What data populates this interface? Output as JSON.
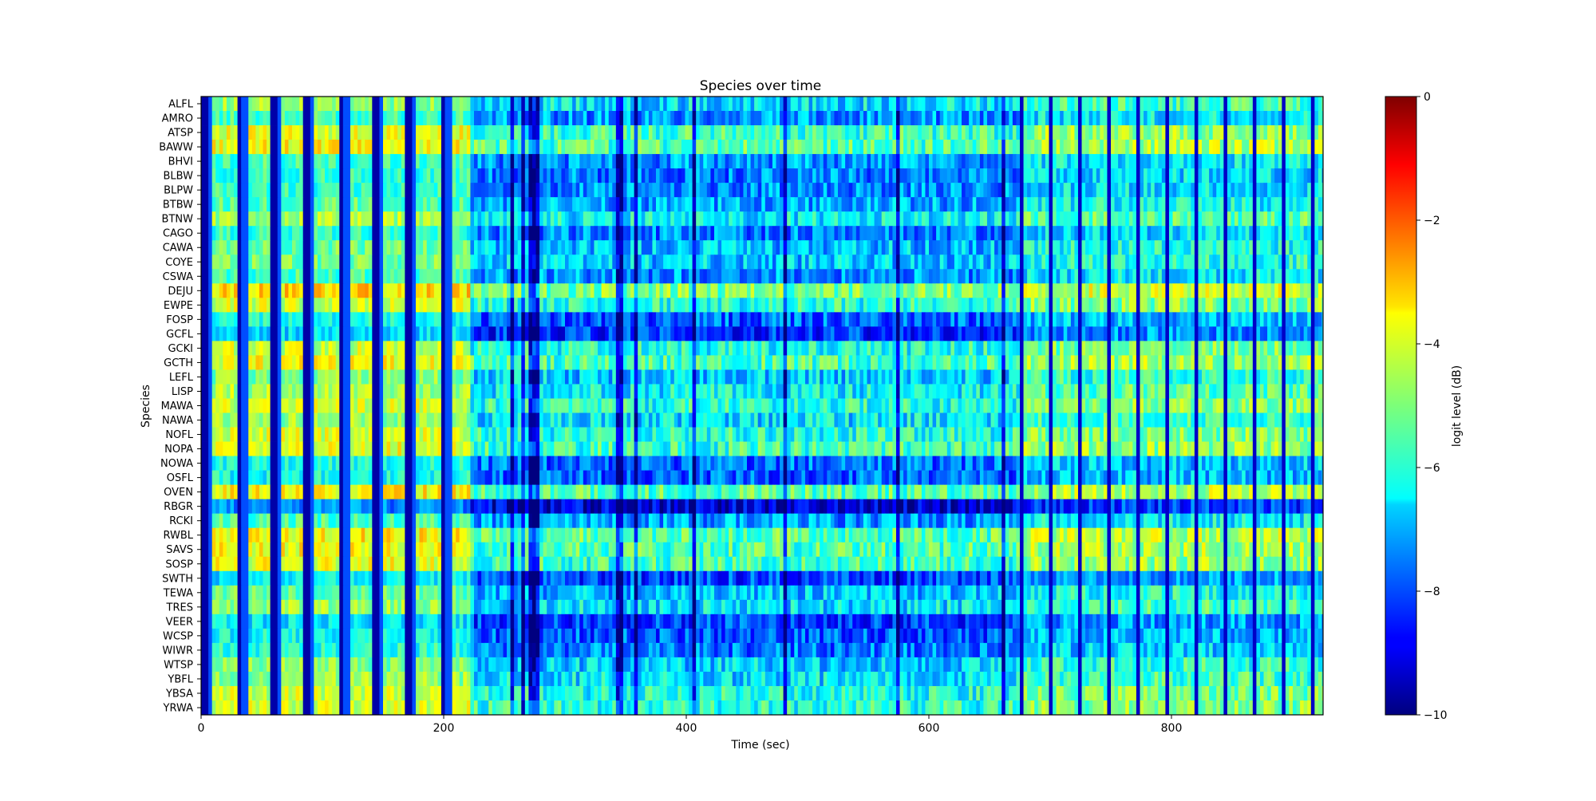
{
  "chart_data": {
    "type": "heatmap",
    "title": "Species over time",
    "xlabel": "Time (sec)",
    "ylabel": "Species",
    "xlim": [
      0,
      925
    ],
    "xticks": [
      0,
      200,
      400,
      600,
      800
    ],
    "time_step_sec": 3,
    "species": [
      "ALFL",
      "AMRO",
      "ATSP",
      "BAWW",
      "BHVI",
      "BLBW",
      "BLPW",
      "BTBW",
      "BTNW",
      "CAGO",
      "CAWA",
      "COYE",
      "CSWA",
      "DEJU",
      "EWPE",
      "FOSP",
      "GCFL",
      "GCKI",
      "GCTH",
      "LEFL",
      "LISP",
      "MAWA",
      "NAWA",
      "NOFL",
      "NOPA",
      "NOWA",
      "OSFL",
      "OVEN",
      "RBGR",
      "RCKI",
      "RWBL",
      "SAVS",
      "SOSP",
      "SWTH",
      "TEWA",
      "TRES",
      "VEER",
      "WCSP",
      "WIWR",
      "WTSP",
      "YBFL",
      "YBSA",
      "YRWA"
    ],
    "species_mean_logit_dB": {
      "ALFL": -6.0,
      "AMRO": -6.8,
      "ATSP": -5.2,
      "BAWW": -5.0,
      "BHVI": -6.8,
      "BLBW": -7.0,
      "BLPW": -6.9,
      "BTBW": -6.6,
      "BTNW": -5.8,
      "CAGO": -7.0,
      "CAWA": -6.4,
      "COYE": -6.3,
      "CSWA": -6.8,
      "DEJU": -4.6,
      "EWPE": -5.4,
      "FOSP": -7.3,
      "GCFL": -7.8,
      "GCKI": -5.5,
      "GCTH": -5.1,
      "LEFL": -6.2,
      "LISP": -5.8,
      "MAWA": -5.4,
      "NAWA": -6.0,
      "NOFL": -5.4,
      "NOPA": -5.2,
      "NOWA": -7.2,
      "OSFL": -7.3,
      "OVEN": -4.9,
      "RBGR": -8.6,
      "RCKI": -6.7,
      "RWBL": -4.9,
      "SAVS": -5.0,
      "SOSP": -5.2,
      "SWTH": -7.6,
      "TEWA": -6.4,
      "TRES": -6.0,
      "VEER": -7.6,
      "WCSP": -7.4,
      "WIWR": -7.1,
      "WTSP": -6.2,
      "YBFL": -6.0,
      "YBSA": -5.5,
      "YRWA": -5.4
    },
    "colormap": "jet",
    "colorbar": {
      "label": "logit level (dB)",
      "range": [
        -10,
        0
      ],
      "ticks": [
        "0",
        "−2",
        "−4",
        "−6",
        "−8",
        "−10"
      ]
    },
    "grid": false
  },
  "axis": {
    "x_tick_labels": [
      "0",
      "200",
      "400",
      "600",
      "800"
    ]
  }
}
